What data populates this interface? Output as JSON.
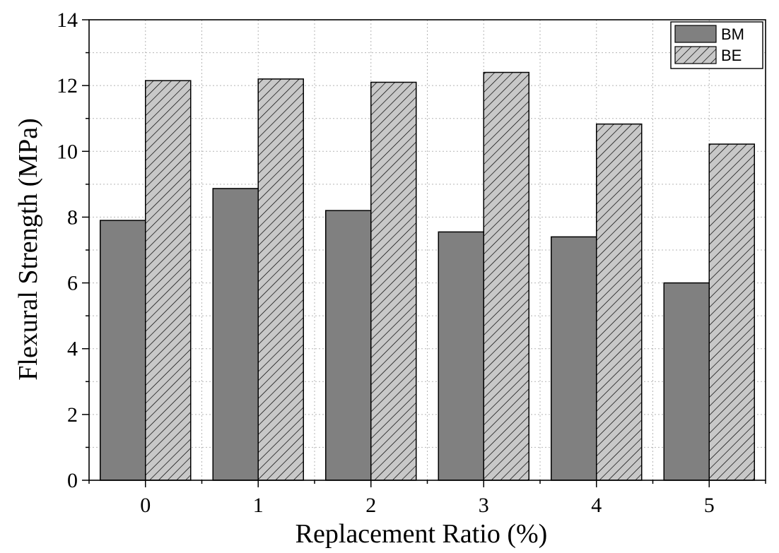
{
  "chart_data": {
    "type": "bar",
    "xlabel": "Replacement Ratio (%)",
    "ylabel": "Flexural Strength (MPa)",
    "categories": [
      "0",
      "1",
      "2",
      "3",
      "4",
      "5"
    ],
    "ylim": [
      0,
      14
    ],
    "yticks": [
      "0",
      "2",
      "4",
      "6",
      "8",
      "10",
      "12",
      "14"
    ],
    "grid": true,
    "legend_position": "top-right",
    "series": [
      {
        "name": "BM",
        "values": [
          7.9,
          8.87,
          8.2,
          7.55,
          7.4,
          6.0
        ],
        "color": "#808080",
        "pattern": "solid"
      },
      {
        "name": "BE",
        "values": [
          12.15,
          12.2,
          12.1,
          12.4,
          10.83,
          10.22
        ],
        "color": "#c8c8c8",
        "pattern": "diagonal-hatch"
      }
    ]
  }
}
